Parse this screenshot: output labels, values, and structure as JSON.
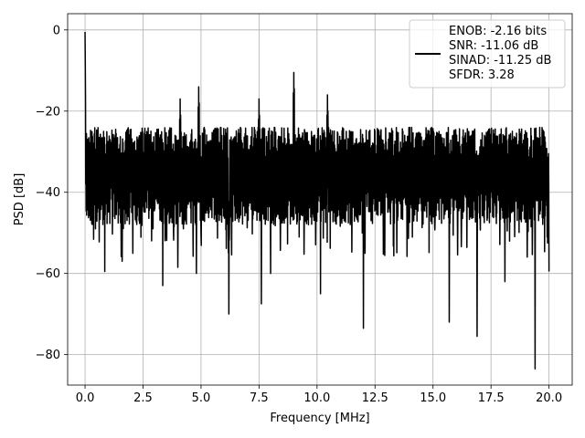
{
  "chart_data": {
    "type": "line",
    "title": "",
    "xlabel": "Frequency [MHz]",
    "ylabel": "PSD [dB]",
    "xlim": [
      -0.75,
      21.0
    ],
    "ylim": [
      -87.5,
      4.0
    ],
    "xticks": [
      0.0,
      2.5,
      5.0,
      7.5,
      10.0,
      12.5,
      15.0,
      17.5,
      20.0
    ],
    "xtick_labels": [
      "0.0",
      "2.5",
      "5.0",
      "7.5",
      "10.0",
      "12.5",
      "15.0",
      "17.5",
      "20.0"
    ],
    "yticks": [
      0,
      -20,
      -40,
      -60,
      -80
    ],
    "ytick_labels": [
      "0",
      "−20",
      "−40",
      "−60",
      "−80"
    ],
    "grid": true,
    "legend_position": "top-right",
    "line_color": "#000000",
    "series": [
      {
        "legend_lines": [
          "ENOB: -2.16 bits",
          "SNR: -11.06 dB",
          "SINAD: -11.25 dB",
          "SFDR: 3.28"
        ],
        "x_range": [
          0.0,
          20.0
        ],
        "noise_floor_db": -36,
        "noise_band_db": [
          -48,
          -24
        ],
        "peaks": [
          {
            "x": 0.0,
            "y": -0.5
          },
          {
            "x": 0.02,
            "y": -17
          },
          {
            "x": 9.0,
            "y": -10.5
          },
          {
            "x": 4.9,
            "y": -14
          },
          {
            "x": 10.45,
            "y": -16
          },
          {
            "x": 4.1,
            "y": -17
          },
          {
            "x": 7.5,
            "y": -17
          }
        ],
        "dips": [
          {
            "x": 0.45,
            "y": -49
          },
          {
            "x": 0.85,
            "y": -59.5
          },
          {
            "x": 1.6,
            "y": -57
          },
          {
            "x": 3.35,
            "y": -63
          },
          {
            "x": 4.0,
            "y": -58.5
          },
          {
            "x": 4.8,
            "y": -60
          },
          {
            "x": 6.2,
            "y": -70
          },
          {
            "x": 7.6,
            "y": -67.5
          },
          {
            "x": 8.0,
            "y": -60
          },
          {
            "x": 10.15,
            "y": -65
          },
          {
            "x": 12.0,
            "y": -73.5
          },
          {
            "x": 15.7,
            "y": -72
          },
          {
            "x": 16.9,
            "y": -75.5
          },
          {
            "x": 18.1,
            "y": -62
          },
          {
            "x": 19.4,
            "y": -83.5
          },
          {
            "x": 20.0,
            "y": -59.5
          }
        ]
      }
    ]
  }
}
